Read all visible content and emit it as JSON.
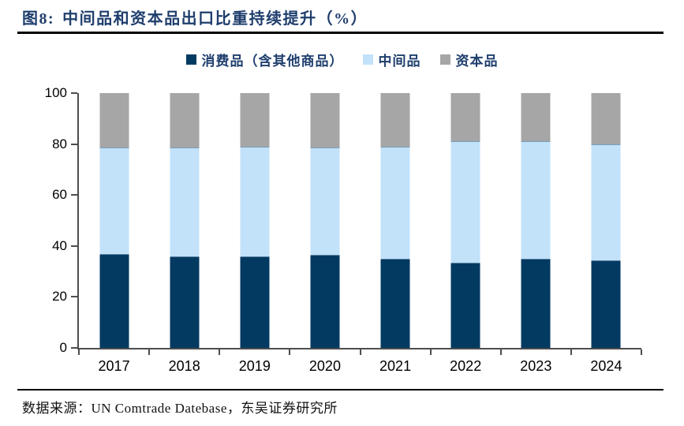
{
  "header": {
    "title_prefix": "图8:",
    "title_text": "中间品和资本品出口比重持续提升（%）"
  },
  "footer": {
    "source": "数据来源：UN Comtrade Datebase，东吴证券研究所"
  },
  "colors": {
    "consumer_navy": "#033a62",
    "intermediate_light_blue": "#c2e2fa",
    "capital_gray": "#a6a6a6",
    "title_navy": "#1f3e6d",
    "axis_gray": "#4d4d4d"
  },
  "chart_data": {
    "type": "bar",
    "stacked": true,
    "title": "图8: 中间品和资本品出口比重持续提升（%）",
    "categories": [
      "2017",
      "2018",
      "2019",
      "2020",
      "2021",
      "2022",
      "2023",
      "2024"
    ],
    "series": [
      {
        "name": "消费品（含其他商品）",
        "color": "#033a62",
        "values": [
          37,
          36,
          36,
          36.5,
          35,
          33.5,
          35,
          34.5
        ]
      },
      {
        "name": "中间品",
        "color": "#c2e2fa",
        "values": [
          41.5,
          42.5,
          43,
          42,
          44,
          47.5,
          46,
          45.5
        ]
      },
      {
        "name": "资本品",
        "color": "#a6a6a6",
        "values": [
          21.5,
          21.5,
          21,
          21.5,
          21,
          19,
          19,
          20
        ]
      }
    ],
    "xlabel": "",
    "ylabel": "",
    "ylim": [
      0,
      100
    ],
    "yticks": [
      0,
      20,
      40,
      60,
      80,
      100
    ],
    "grid": false,
    "legend_position": "top-center"
  }
}
